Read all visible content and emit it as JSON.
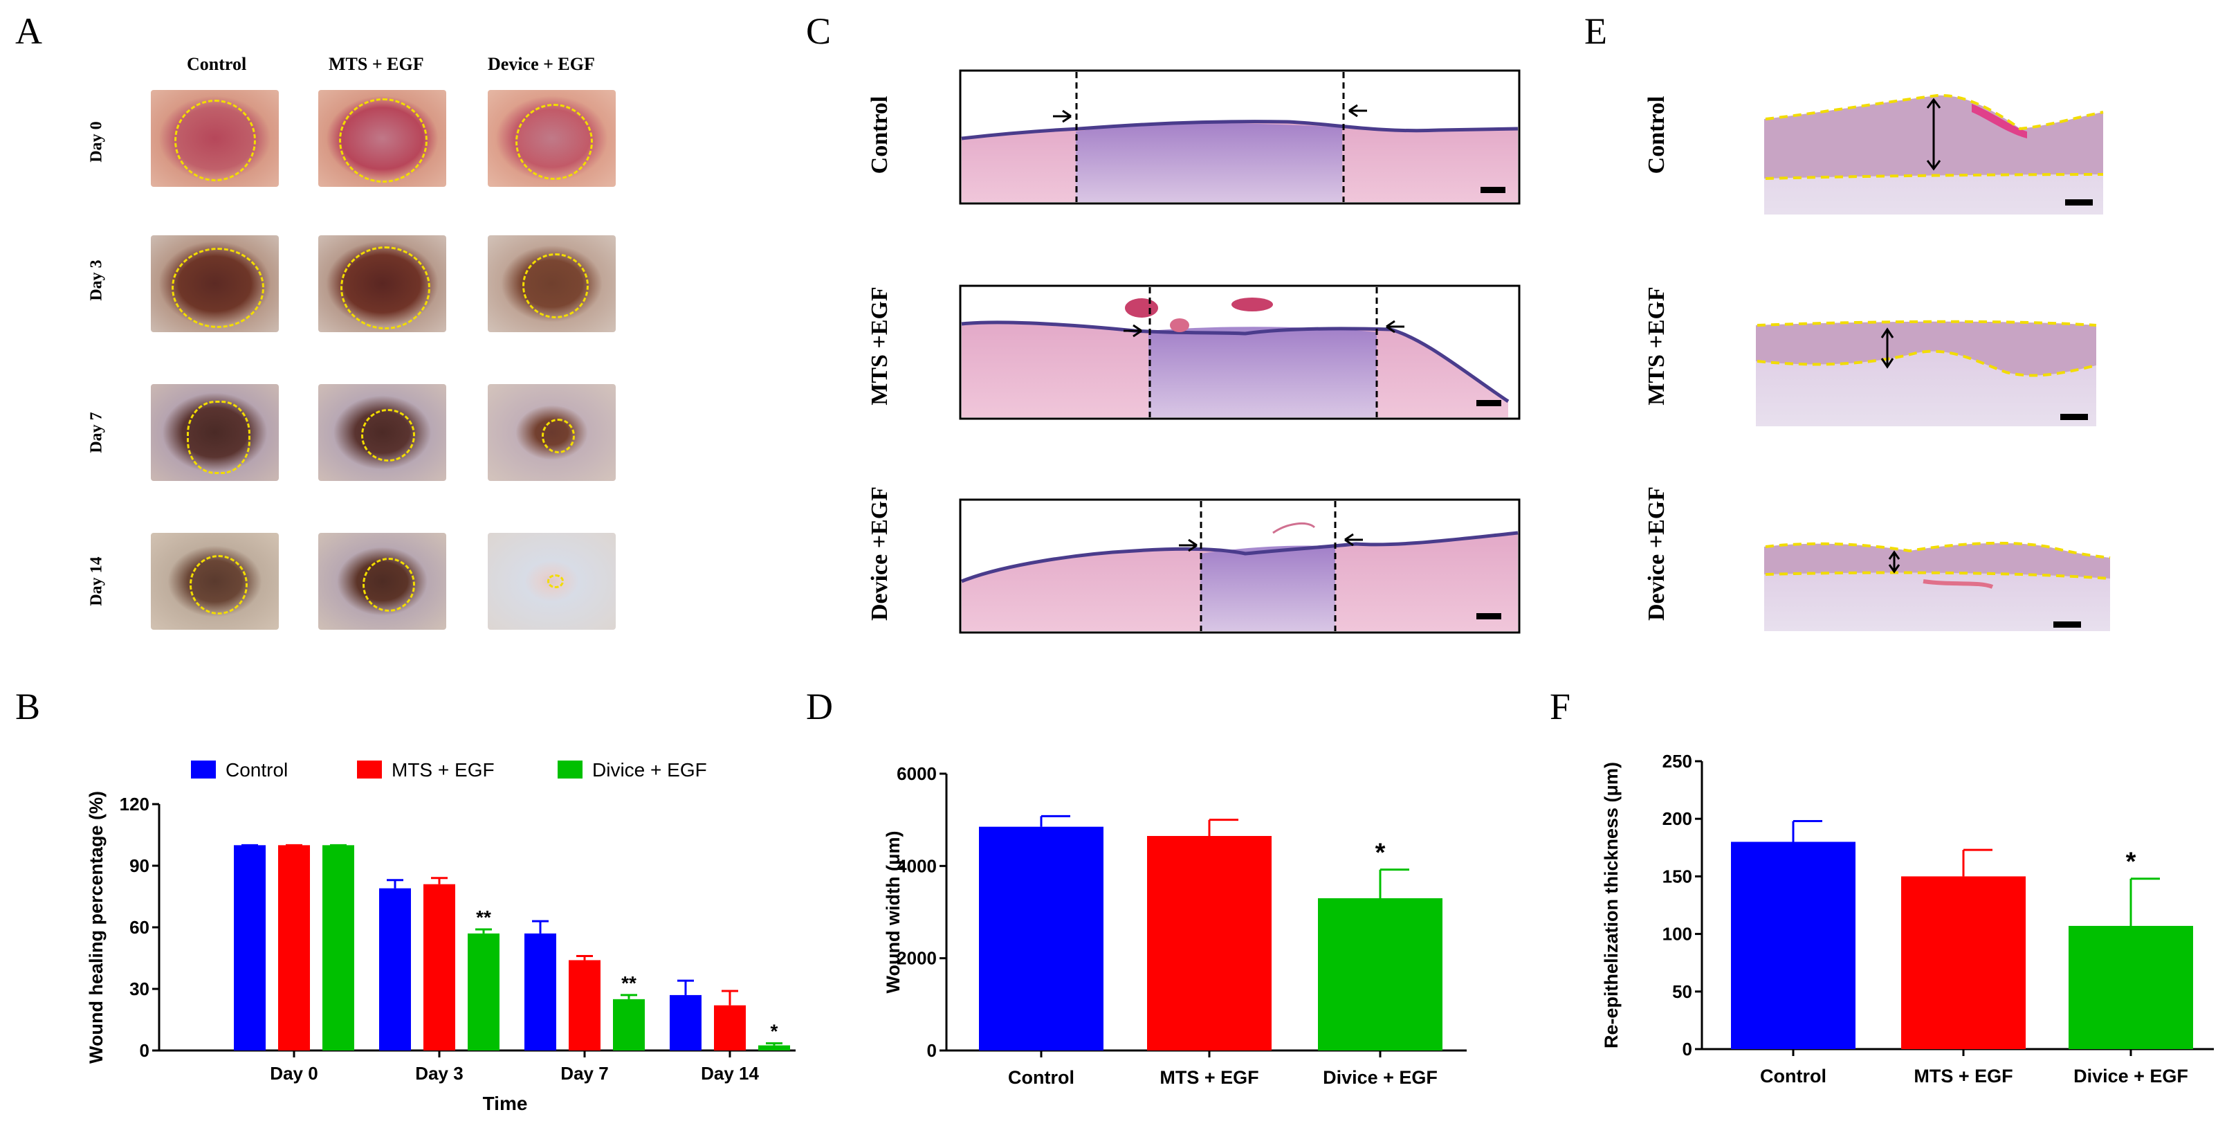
{
  "panels": {
    "A": {
      "letter": "A",
      "columns": [
        "Control",
        "MTS + EGF",
        "Device + EGF"
      ],
      "rows": [
        "Day 0",
        "Day 3",
        "Day 7",
        "Day 14"
      ]
    },
    "C": {
      "letter": "C",
      "rows": [
        "Control",
        "MTS +EGF",
        "Device +EGF"
      ]
    },
    "E": {
      "letter": "E",
      "rows": [
        "Control",
        "MTS +EGF",
        "Device +EGF"
      ]
    },
    "B": {
      "letter": "B"
    },
    "D": {
      "letter": "D"
    },
    "F": {
      "letter": "F"
    }
  },
  "chart_data": [
    {
      "id": "B",
      "type": "bar",
      "title": "",
      "xlabel": "Time",
      "ylabel": "Wound healing percentage (%)",
      "ylim": [
        0,
        120
      ],
      "yticks": [
        "0",
        "30",
        "60",
        "90",
        "120"
      ],
      "categories": [
        "Day 0",
        "Day 3",
        "Day 7",
        "Day 14"
      ],
      "legend_position": "top",
      "series": [
        {
          "name": "Control",
          "color": "#0000ff",
          "values": [
            100,
            79,
            57,
            27
          ],
          "errors": [
            0,
            4,
            6,
            7
          ],
          "sig": [
            "",
            "",
            "",
            ""
          ]
        },
        {
          "name": "MTS + EGF",
          "color": "#ff0000",
          "values": [
            100,
            81,
            44,
            22
          ],
          "errors": [
            0,
            3,
            2,
            7
          ],
          "sig": [
            "",
            "",
            "",
            ""
          ]
        },
        {
          "name": "Divice + EGF",
          "color": "#00c000",
          "values": [
            100,
            57,
            25,
            2.5
          ],
          "errors": [
            0,
            2,
            2,
            1
          ],
          "sig": [
            "",
            "**",
            "**",
            "*"
          ]
        }
      ]
    },
    {
      "id": "D",
      "type": "bar",
      "title": "",
      "xlabel": "",
      "ylabel": "Wound width (μm)",
      "ylim": [
        0,
        6000
      ],
      "yticks": [
        "0",
        "2000",
        "4000",
        "6000"
      ],
      "categories": [
        "Control",
        "MTS + EGF",
        "Divice + EGF"
      ],
      "values": [
        4850,
        4650,
        3300
      ],
      "errors": [
        230,
        350,
        620
      ],
      "colors": [
        "#0000ff",
        "#ff0000",
        "#00c000"
      ],
      "sig": [
        "",
        "",
        "*"
      ]
    },
    {
      "id": "F",
      "type": "bar",
      "title": "",
      "xlabel": "",
      "ylabel": "Re-epithelization thickness (μm)",
      "ylim": [
        0,
        250
      ],
      "yticks": [
        "0",
        "50",
        "100",
        "150",
        "200",
        "250"
      ],
      "categories": [
        "Control",
        "MTS + EGF",
        "Divice + EGF"
      ],
      "values": [
        180,
        150,
        107
      ],
      "errors": [
        18,
        23,
        41
      ],
      "colors": [
        "#0000ff",
        "#ff0000",
        "#00c000"
      ],
      "sig": [
        "",
        "",
        "*"
      ]
    }
  ]
}
